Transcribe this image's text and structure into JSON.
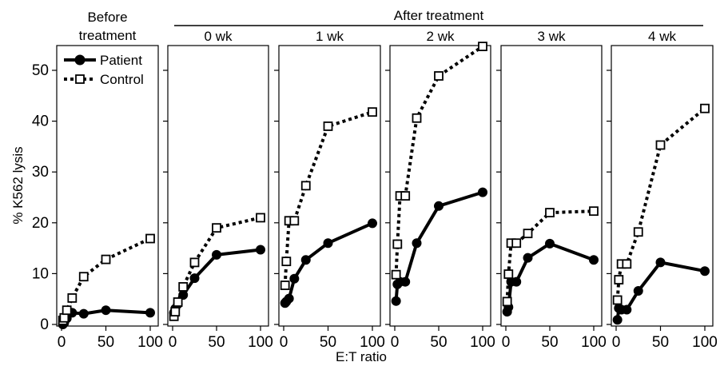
{
  "chart_data": {
    "type": "line",
    "group_title": "After treatment",
    "ylabel": "% K562 lysis",
    "xlabel": "E:T ratio",
    "ylim": [
      0,
      55
    ],
    "xlim": [
      0,
      100
    ],
    "yticks": [
      0,
      10,
      20,
      30,
      40,
      50
    ],
    "xticks": [
      0,
      50,
      100
    ],
    "legend": {
      "placement": "top-left of first panel",
      "entries": [
        {
          "name": "Patient",
          "style": "solid line, filled circle"
        },
        {
          "name": "Control",
          "style": "dotted line, open square"
        }
      ]
    },
    "x": [
      1.5,
      3,
      6,
      12,
      25,
      50,
      100
    ],
    "panels": [
      {
        "title": "Before treatment",
        "title_lines": [
          "Before",
          "treatment"
        ],
        "series": [
          {
            "name": "Patient",
            "values": [
              0,
              0.3,
              1.2,
              2.3,
              2.1,
              2.8,
              2.3
            ]
          },
          {
            "name": "Control",
            "values": [
              0.8,
              1.3,
              2.8,
              5.2,
              9.4,
              12.8,
              16.9
            ]
          }
        ]
      },
      {
        "title": "0 wk",
        "series": [
          {
            "name": "Patient",
            "values": [
              2.3,
              3.1,
              4.0,
              5.8,
              9.1,
              13.7,
              14.7
            ]
          },
          {
            "name": "Control",
            "values": [
              1.6,
              2.5,
              4.4,
              7.4,
              12.2,
              19.0,
              21.0
            ]
          }
        ]
      },
      {
        "title": "1 wk",
        "series": [
          {
            "name": "Patient",
            "values": [
              4.2,
              4.5,
              5.1,
              9.0,
              12.7,
              16.0,
              19.9
            ]
          },
          {
            "name": "Control",
            "values": [
              7.7,
              12.4,
              20.4,
              20.4,
              27.3,
              39.0,
              41.8
            ]
          }
        ]
      },
      {
        "title": "2 wk",
        "series": [
          {
            "name": "Patient",
            "values": [
              4.6,
              7.9,
              8.4,
              8.4,
              16.0,
              23.3,
              26.0
            ]
          },
          {
            "name": "Control",
            "values": [
              9.8,
              15.8,
              25.3,
              25.3,
              40.6,
              48.9,
              54.7
            ]
          }
        ]
      },
      {
        "title": "3 wk",
        "series": [
          {
            "name": "Patient",
            "values": [
              2.5,
              3.4,
              8.4,
              8.4,
              13.1,
              15.9,
              12.7
            ]
          },
          {
            "name": "Control",
            "values": [
              4.5,
              9.9,
              16.0,
              16.0,
              17.9,
              22.0,
              22.3
            ]
          }
        ]
      },
      {
        "title": "4 wk",
        "series": [
          {
            "name": "Patient",
            "values": [
              0.9,
              3.2,
              2.9,
              2.9,
              6.6,
              12.2,
              10.5
            ]
          },
          {
            "name": "Control",
            "values": [
              4.8,
              8.8,
              11.9,
              11.9,
              18.2,
              35.3,
              42.5
            ]
          }
        ]
      }
    ]
  }
}
